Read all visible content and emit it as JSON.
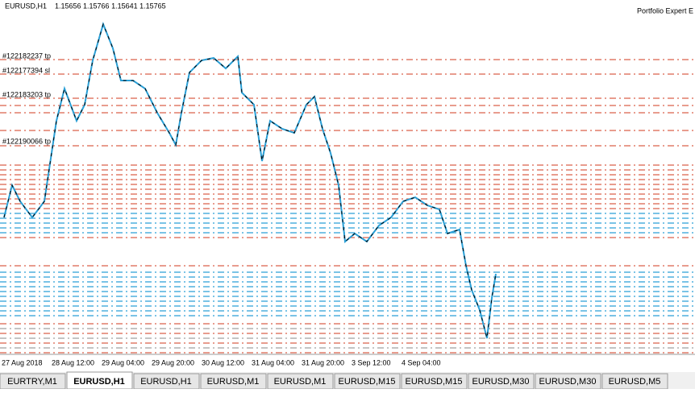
{
  "header": {
    "symbol": "EURUSD,H1",
    "quote": "1.15656 1.15766 1.15641 1.15765",
    "expert": "Portfolio Expert E"
  },
  "order_labels": [
    "#122182237 tp",
    "#122177394 sl",
    "#122183203 tp",
    "#122190066 tp"
  ],
  "time_axis": [
    "27 Aug 2018",
    "28 Aug 12:00",
    "29 Aug 04:00",
    "29 Aug 20:00",
    "30 Aug 12:00",
    "31 Aug 04:00",
    "31 Aug 20:00",
    "3 Sep 12:00",
    "4 Sep 04:00"
  ],
  "tabs": [
    "EURTRY,M1",
    "EURUSD,H1",
    "EURUSD,H1",
    "EURUSD,M1",
    "EURUSD,M1",
    "EURUSD,M15",
    "EURUSD,M15",
    "EURUSD,M30",
    "EURUSD,M30",
    "EURUSD,M5"
  ]
}
